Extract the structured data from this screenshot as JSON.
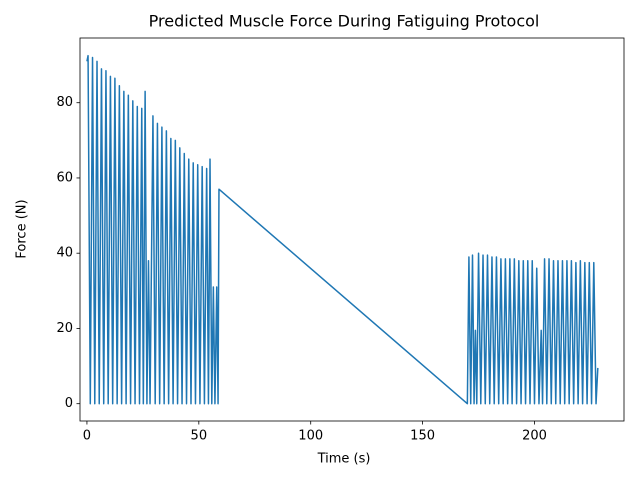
{
  "chart_data": {
    "type": "line",
    "title": "Predicted Muscle Force During Fatiguing Protocol",
    "x_label": "Time (s)",
    "y_label": "Force (N)",
    "x": [
      0,
      0.5,
      1.5,
      2.5,
      3.5,
      4.5,
      5.5,
      6.5,
      7.5,
      8.5,
      9.5,
      10.5,
      11.5,
      12.5,
      13.5,
      14.5,
      15.5,
      16.5,
      17.5,
      18.5,
      19.5,
      20.5,
      21.5,
      22.5,
      23.5,
      24.5,
      25.2,
      26,
      26.8,
      27.5,
      28.2,
      29.5,
      30.5,
      31.5,
      32.5,
      33.5,
      34.5,
      35.5,
      36.5,
      37.5,
      38.5,
      39.5,
      40.5,
      41.5,
      42.5,
      43.5,
      44.5,
      45.5,
      46.5,
      47.5,
      48.5,
      49.5,
      50.5,
      51.5,
      52.5,
      53.5,
      54.3,
      55,
      55.8,
      56.5,
      57.2,
      58,
      58.6,
      59,
      170,
      170.7,
      171.5,
      172.3,
      173,
      173.6,
      174.2,
      175,
      176,
      177,
      178,
      179,
      180,
      181,
      182,
      183,
      184,
      185,
      186,
      187,
      188,
      189,
      190,
      191,
      192,
      193,
      194,
      195,
      196,
      197,
      198,
      199,
      200,
      201,
      202,
      203,
      203.6,
      204.5,
      205.5,
      206.5,
      207.5,
      208.5,
      209.5,
      210.5,
      211.5,
      212.5,
      213.5,
      214.5,
      215.5,
      216.5,
      217.5,
      218.5,
      219.5,
      220.5,
      221.5,
      222.5,
      223.5,
      224.5,
      225.5,
      226.5,
      227.5,
      228.3
    ],
    "values": [
      91,
      92.5,
      0,
      92,
      0,
      91,
      0,
      89,
      0,
      88.5,
      0,
      87,
      0,
      86.5,
      0,
      84.5,
      0,
      83,
      0,
      82,
      0,
      80.5,
      0,
      79,
      0,
      78.5,
      0,
      83,
      0,
      38,
      0,
      76.5,
      0,
      74.5,
      0,
      73.5,
      0,
      72.5,
      0,
      70.5,
      0,
      70,
      0,
      68,
      0,
      66.5,
      0,
      65,
      0,
      64,
      0,
      63.5,
      0,
      63,
      0,
      62.5,
      0,
      65,
      0,
      31,
      0,
      31,
      0,
      57,
      0,
      39,
      0,
      39.5,
      0,
      19.5,
      0,
      40,
      0,
      39.5,
      0,
      39.5,
      0,
      39,
      0,
      39,
      0,
      38.5,
      0,
      38.5,
      0,
      38.5,
      0,
      38.5,
      0,
      38,
      0,
      38,
      0,
      38,
      0,
      38,
      0,
      36,
      0,
      19.5,
      0,
      38.5,
      0,
      38.5,
      0,
      38,
      0,
      38,
      0,
      38,
      0,
      38,
      0,
      38,
      0,
      37.5,
      0,
      38,
      0,
      37.5,
      0,
      37.5,
      0,
      37.5,
      0,
      9.5
    ],
    "color": "#1f77b4",
    "xlim": [
      -3.1,
      240
    ],
    "xticks": [
      0,
      50,
      100,
      150,
      200
    ],
    "ylim": [
      -4.6,
      97.2
    ],
    "yticks": [
      0,
      20,
      40,
      60,
      80
    ],
    "grid": false
  }
}
